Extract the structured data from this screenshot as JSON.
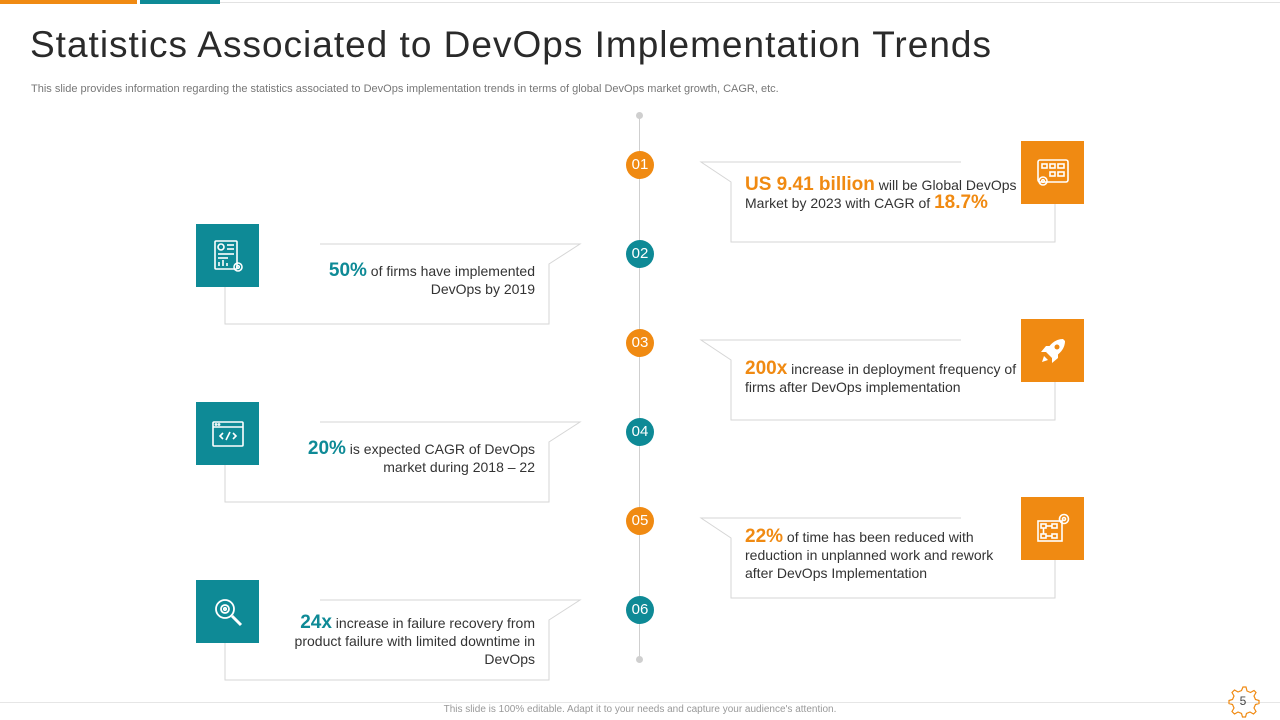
{
  "title": "Statistics Associated to DevOps Implementation Trends",
  "subtitle": "This slide provides information regarding the statistics associated to DevOps implementation trends in terms of global DevOps market growth, CAGR, etc.",
  "colors": {
    "orange": "#f08a12",
    "teal": "#0e8a96"
  },
  "steps": [
    "01",
    "02",
    "03",
    "04",
    "05",
    "06"
  ],
  "cards": [
    {
      "id": "01",
      "icon": "blueprint-gear-icon",
      "highlight": "US 9.41 billion",
      "text": " will  be Global DevOps Market by 2023 with  CAGR  of ",
      "highlight2": "18.7%"
    },
    {
      "id": "02",
      "icon": "dashboard-report-gear-icon",
      "highlight": "50%",
      "text": " of firms have implemented DevOps by 2019"
    },
    {
      "id": "03",
      "icon": "rocket-icon",
      "highlight": "200x",
      "text": " increase in deployment frequency of firms  after DevOps implementation"
    },
    {
      "id": "04",
      "icon": "code-window-icon",
      "highlight": "20%",
      "text": " is expected CAGR of DevOps market during 2018 – 22"
    },
    {
      "id": "05",
      "icon": "workflow-gear-icon",
      "highlight": "22%",
      "text": " of time has been reduced with reduction in unplanned work  and rework after DevOps Implementation"
    },
    {
      "id": "06",
      "icon": "magnifier-gear-icon",
      "highlight": "24x",
      "text": " increase in failure recovery from product failure with  limited downtime in DevOps"
    }
  ],
  "footer": "This slide is 100% editable. Adapt it to your needs and capture your audience's attention.",
  "page_number": "5"
}
